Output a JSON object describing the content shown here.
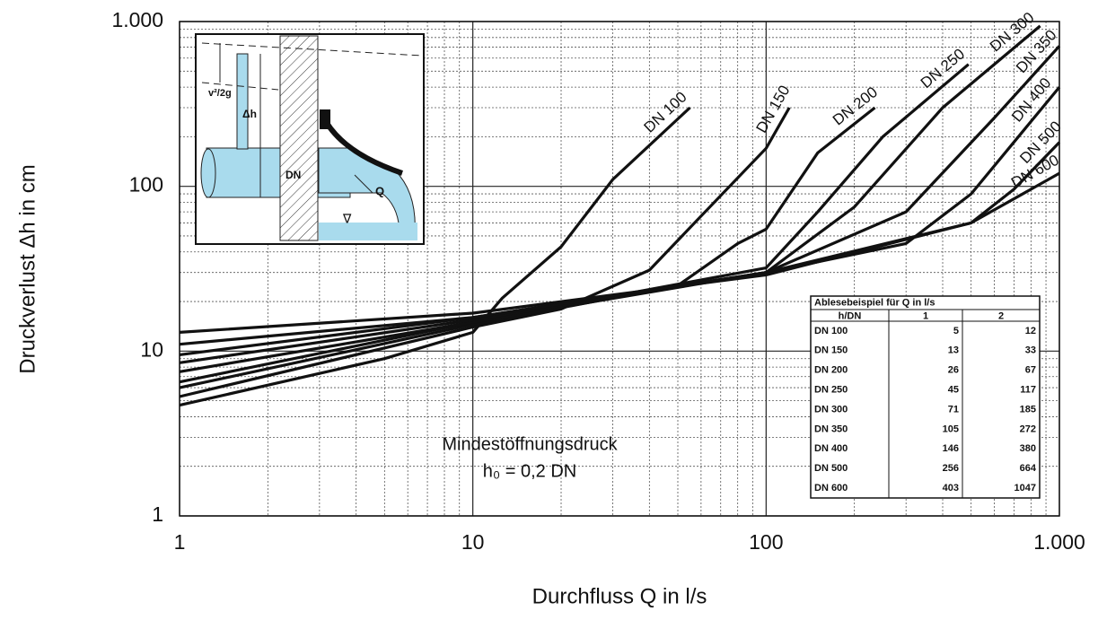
{
  "chart_data": {
    "type": "line",
    "xlabel": "Durchfluss Q in l/s",
    "ylabel": "Druckverlust Δh in cm",
    "log_x": true,
    "log_y": true,
    "grid": true,
    "xlim": [
      1,
      1000
    ],
    "ylim": [
      1,
      1000
    ],
    "xticks": [
      1,
      10,
      100,
      {
        "value": 1000,
        "label": "1.000"
      }
    ],
    "yticks": [
      1,
      10,
      100,
      {
        "value": 1000,
        "label": "1.000"
      }
    ],
    "series": [
      {
        "name": "DN 100",
        "color": "#111111",
        "x": [
          1,
          5,
          10,
          12.6,
          20,
          30,
          55
        ],
        "values": [
          4.7,
          9,
          13,
          21,
          43,
          110,
          300
        ]
      },
      {
        "name": "DN 150",
        "color": "#111111",
        "x": [
          1,
          10,
          20,
          40,
          60,
          100,
          120
        ],
        "values": [
          5.3,
          14,
          18,
          31,
          66,
          170,
          300
        ]
      },
      {
        "name": "DN 200",
        "color": "#111111",
        "x": [
          1,
          10,
          50,
          80,
          100,
          150,
          235
        ],
        "values": [
          6,
          14.5,
          25,
          45,
          55,
          160,
          300
        ]
      },
      {
        "name": "DN 250",
        "color": "#111111",
        "x": [
          1,
          10,
          100,
          150,
          250,
          490
        ],
        "values": [
          6.5,
          15,
          32,
          70,
          200,
          550
        ]
      },
      {
        "name": "DN 300",
        "color": "#111111",
        "x": [
          1,
          10,
          100,
          200,
          400,
          860
        ],
        "values": [
          7.5,
          15,
          30,
          75,
          300,
          940
        ]
      },
      {
        "name": "DN 350",
        "color": "#111111",
        "x": [
          1,
          10,
          100,
          300,
          600,
          1000
        ],
        "values": [
          8.5,
          15.5,
          30,
          70,
          260,
          710
        ]
      },
      {
        "name": "DN 400",
        "color": "#111111",
        "x": [
          1,
          10,
          100,
          300,
          500,
          1000
        ],
        "values": [
          9.5,
          16,
          30,
          45,
          90,
          400
        ]
      },
      {
        "name": "DN 500",
        "color": "#111111",
        "x": [
          1,
          10,
          100,
          500,
          700,
          1000
        ],
        "values": [
          11,
          16,
          30,
          60,
          96,
          185
        ]
      },
      {
        "name": "DN 600",
        "color": "#111111",
        "x": [
          1,
          10,
          100,
          500,
          1000
        ],
        "values": [
          13,
          17,
          29,
          60,
          120
        ]
      }
    ],
    "annotation": [
      "Mindestöffnungsdruck",
      "h₀ = 0,2 DN"
    ],
    "inset_labels": [
      "v²/2g",
      "Δh",
      "DN",
      "Q",
      "∇"
    ],
    "table": {
      "title": "Ablesebeispiel für Q in l/s",
      "header": [
        "h/DN",
        "1",
        "2"
      ],
      "rows": [
        [
          "DN 100",
          "5",
          "12"
        ],
        [
          "DN 150",
          "13",
          "33"
        ],
        [
          "DN 200",
          "26",
          "67"
        ],
        [
          "DN 250",
          "45",
          "117"
        ],
        [
          "DN 300",
          "71",
          "185"
        ],
        [
          "DN 350",
          "105",
          "272"
        ],
        [
          "DN 400",
          "146",
          "380"
        ],
        [
          "DN 500",
          "256",
          "664"
        ],
        [
          "DN 600",
          "403",
          "1047"
        ]
      ]
    }
  }
}
